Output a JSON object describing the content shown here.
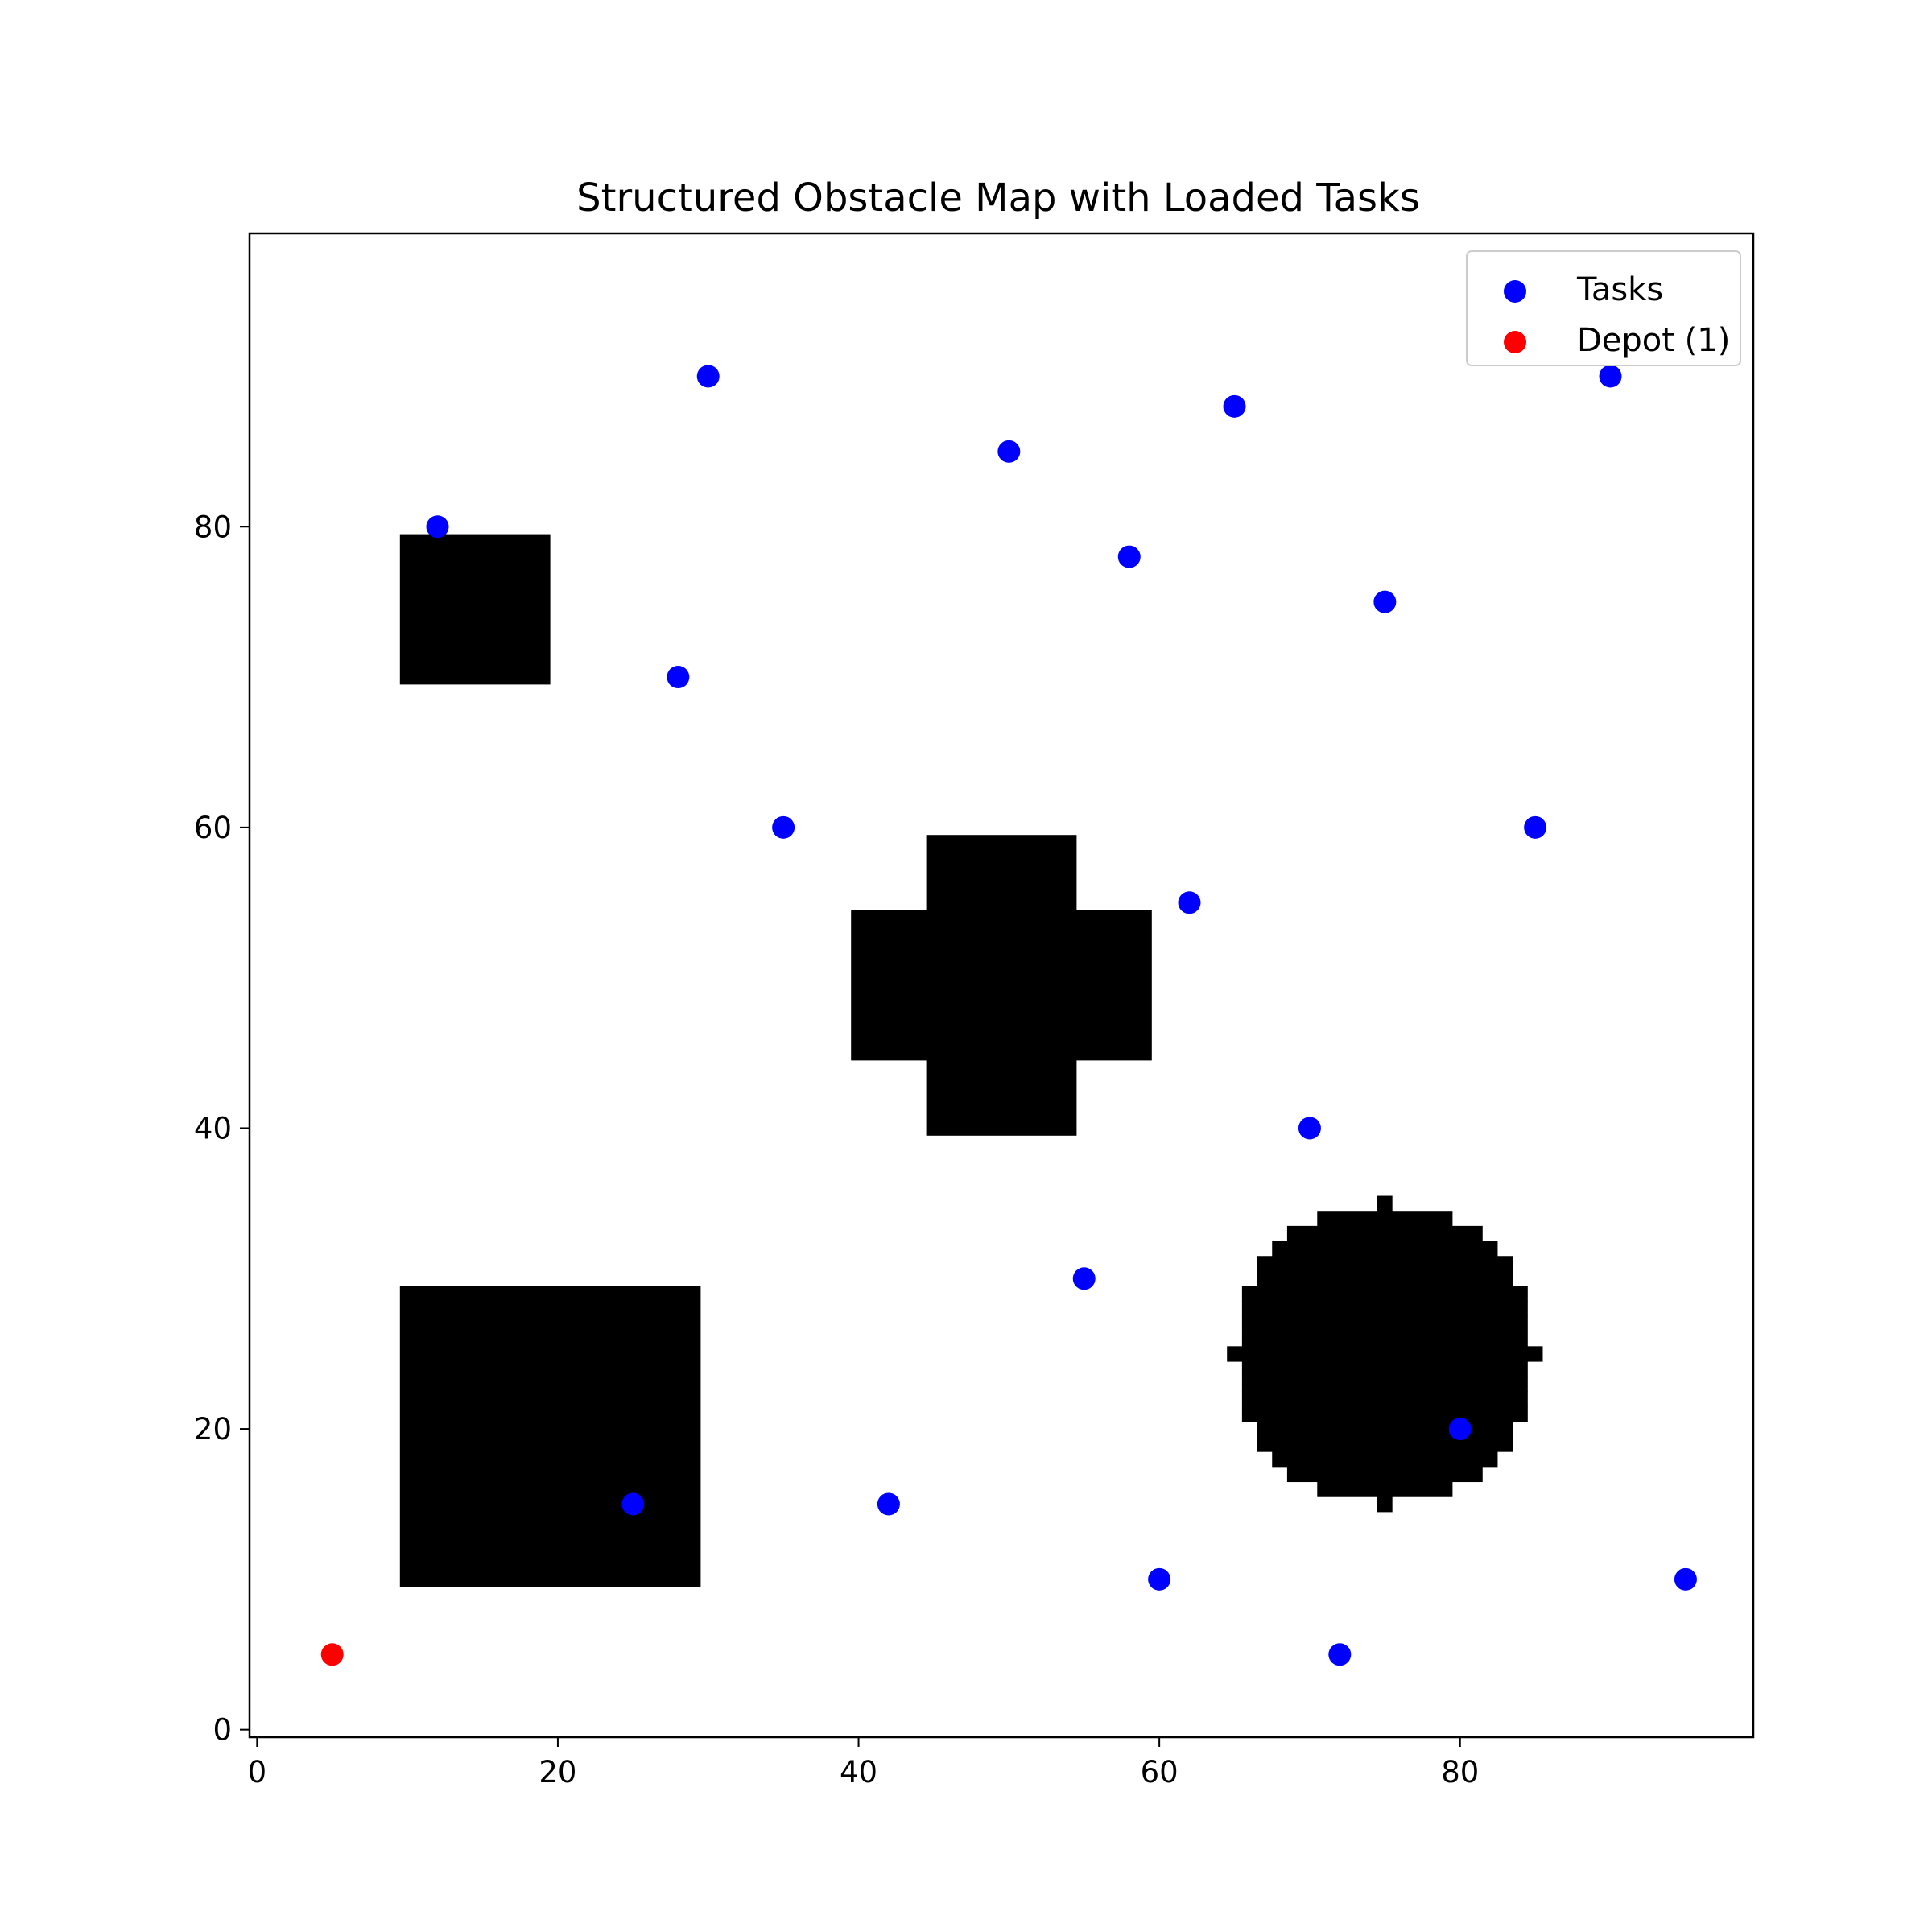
{
  "chart_data": {
    "type": "scatter",
    "title": "Structured Obstacle Map with Loaded Tasks",
    "xlabel": "",
    "ylabel": "",
    "xlim": [
      -0.5,
      99.5
    ],
    "ylim": [
      -0.5,
      99.5
    ],
    "y_axis": "increasing-upward",
    "x_ticks": [
      "0",
      "20",
      "40",
      "60",
      "80"
    ],
    "y_ticks": [
      "0",
      "20",
      "40",
      "60",
      "80"
    ],
    "grid": false,
    "legend_position": "top-right",
    "legend": [
      {
        "label": "Tasks",
        "color": "#0000ff"
      },
      {
        "label": "Depot (1)",
        "color": "#ff0000"
      }
    ],
    "series": [
      {
        "name": "Tasks",
        "color": "#0000ff",
        "points": [
          [
            12,
            80
          ],
          [
            30,
            90
          ],
          [
            50,
            85
          ],
          [
            65,
            88
          ],
          [
            90,
            90
          ],
          [
            58,
            78
          ],
          [
            75,
            75
          ],
          [
            28,
            70
          ],
          [
            35,
            60
          ],
          [
            85,
            60
          ],
          [
            62,
            55
          ],
          [
            70,
            40
          ],
          [
            55,
            30
          ],
          [
            80,
            20
          ],
          [
            25,
            15
          ],
          [
            42,
            15
          ],
          [
            60,
            10
          ],
          [
            95,
            10
          ],
          [
            72,
            5
          ]
        ]
      },
      {
        "name": "Depot (1)",
        "color": "#ff0000",
        "points": [
          [
            5,
            5
          ]
        ]
      }
    ],
    "obstacles": {
      "color": "#000000",
      "rectangles": [
        {
          "x0": 10,
          "x1": 19,
          "y0": 70,
          "y1": 79
        },
        {
          "x0": 10,
          "x1": 29,
          "y0": 10,
          "y1": 29
        },
        {
          "x0": 45,
          "x1": 54,
          "y0": 40,
          "y1": 59
        },
        {
          "x0": 40,
          "x1": 59,
          "y0": 45,
          "y1": 54
        }
      ],
      "circles": [
        {
          "cx": 75,
          "cy": 25,
          "r": 10
        }
      ]
    }
  }
}
